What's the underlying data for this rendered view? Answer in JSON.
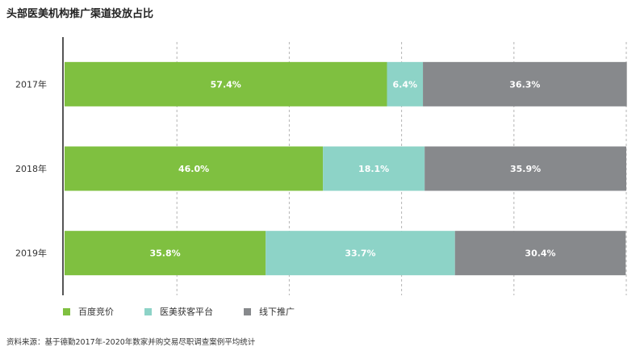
{
  "title": "头部医美机构推广渠道投放占比",
  "source": "资料来源：基于德勤2017年-2020年数家并购交易尽职调查案例平均统计",
  "chart_data": {
    "type": "bar",
    "orientation": "horizontal",
    "stacked": true,
    "categories": [
      "2017年",
      "2018年",
      "2019年"
    ],
    "series": [
      {
        "name": "百度竞价",
        "values": [
          57.4,
          46.0,
          35.8
        ],
        "labels": [
          "57.4%",
          "46.0%",
          "35.8%"
        ],
        "color": "#7fc040"
      },
      {
        "name": "医美获客平台",
        "values": [
          6.4,
          18.1,
          33.7
        ],
        "labels": [
          "6.4%",
          "18.1%",
          "33.7%"
        ],
        "color": "#8dd3c7"
      },
      {
        "name": "线下推广",
        "values": [
          36.3,
          35.9,
          30.4
        ],
        "labels": [
          "36.3%",
          "35.9%",
          "30.4%"
        ],
        "color": "#87898c"
      }
    ],
    "xlim": [
      0,
      100
    ],
    "grid": true,
    "legend_position": "bottom-left"
  }
}
